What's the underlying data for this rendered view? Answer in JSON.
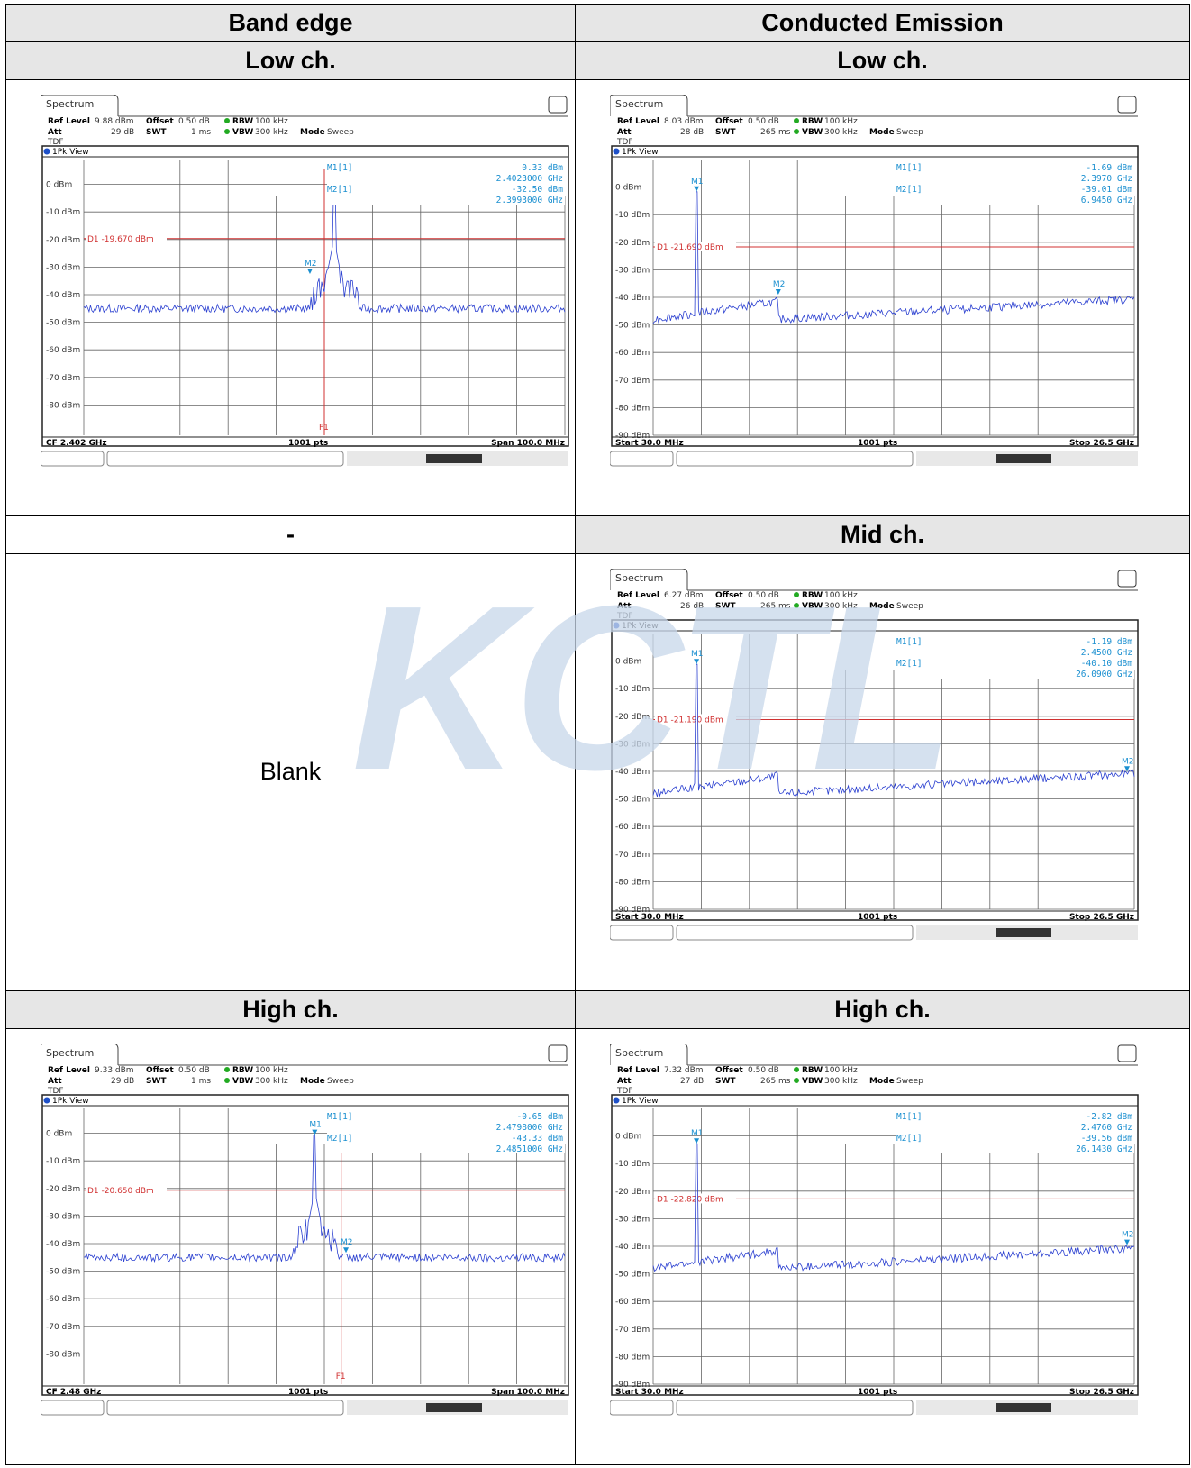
{
  "watermark": "KCTL",
  "table": {
    "col1_header": "Band edge",
    "col2_header": "Conducted Emission",
    "rows": [
      {
        "left_label": "Low ch.",
        "right_label": "Low ch."
      },
      {
        "left_label": "-",
        "right_label": "Mid ch."
      },
      {
        "left_label": "High ch.",
        "right_label": "High ch."
      }
    ],
    "blank_text": "Blank"
  },
  "chart_data": [
    {
      "id": "be-low",
      "type": "line",
      "tab": "Spectrum",
      "view": "1Pk View",
      "tdf": "TDF",
      "ref_level": "9.88 dBm",
      "att": "29 dB",
      "offset": "0.50 dB",
      "swt": "1 ms",
      "rbw": "100 kHz",
      "vbw": "300 kHz",
      "mode": "Sweep",
      "footer_left": "CF 2.402 GHz",
      "footer_mid": "1001 pts",
      "footer_right": "Span 100.0 MHz",
      "y_ticks": [
        "0 dBm",
        "-10 dBm",
        "-20 dBm",
        "-30 dBm",
        "-40 dBm",
        "-50 dBm",
        "-60 dBm",
        "-70 dBm",
        "-80 dBm"
      ],
      "ylim": [
        -90,
        10
      ],
      "ref_line_y": -3,
      "display_line": {
        "label": "D1",
        "value": "-19.670 dBm",
        "level": -19.67
      },
      "freq_line": {
        "label": "F1",
        "pos": 0.5
      },
      "markers": [
        {
          "name": "M1",
          "pos": 0.52,
          "level": 0.33
        },
        {
          "name": "M2",
          "pos": 0.47,
          "level": -32.5
        }
      ],
      "readout": [
        {
          "name": "M1[1]",
          "level": "0.33 dBm",
          "freq": "2.4023000 GHz"
        },
        {
          "name": "M2[1]",
          "level": "-32.50 dBm",
          "freq": "2.3993000 GHz"
        }
      ],
      "trace": {
        "kind": "band",
        "noise": -45,
        "peak_pos": 0.52,
        "peak_level": 0.33
      }
    },
    {
      "id": "ce-low",
      "type": "line",
      "tab": "Spectrum",
      "view": "1Pk View",
      "tdf": "TDF",
      "ref_level": "8.03 dBm",
      "att": "28 dB",
      "offset": "0.50 dB",
      "swt": "265 ms",
      "rbw": "100 kHz",
      "vbw": "300 kHz",
      "mode": "Sweep",
      "footer_left": "Start 30.0 MHz",
      "footer_mid": "1001 pts",
      "footer_right": "Stop 26.5 GHz",
      "y_ticks": [
        "0 dBm",
        "-10 dBm",
        "-20 dBm",
        "-30 dBm",
        "-40 dBm",
        "-50 dBm",
        "-60 dBm",
        "-70 dBm",
        "-80 dBm",
        "-90 dBm"
      ],
      "ylim": [
        -90,
        10
      ],
      "ref_line_y": 0,
      "display_line": {
        "label": "D1",
        "value": "-21.690 dBm",
        "level": -21.69
      },
      "freq_line": null,
      "markers": [
        {
          "name": "M1",
          "pos": 0.09,
          "level": -1.69
        },
        {
          "name": "M2",
          "pos": 0.26,
          "level": -39.01
        }
      ],
      "readout": [
        {
          "name": "M1[1]",
          "level": "-1.69 dBm",
          "freq": "2.3970 GHz"
        },
        {
          "name": "M2[1]",
          "level": "-39.01 dBm",
          "freq": "6.9450 GHz"
        }
      ],
      "trace": {
        "kind": "wide",
        "m1_pos": 0.09,
        "m1_level": -1.69
      }
    },
    {
      "id": "ce-mid",
      "type": "line",
      "tab": "Spectrum",
      "view": "1Pk View",
      "tdf": "TDF",
      "ref_level": "6.27 dBm",
      "att": "26 dB",
      "offset": "0.50 dB",
      "swt": "265 ms",
      "rbw": "100 kHz",
      "vbw": "300 kHz",
      "mode": "Sweep",
      "footer_left": "Start 30.0 MHz",
      "footer_mid": "1001 pts",
      "footer_right": "Stop 26.5 GHz",
      "y_ticks": [
        "0 dBm",
        "-10 dBm",
        "-20 dBm",
        "-30 dBm",
        "-40 dBm",
        "-50 dBm",
        "-60 dBm",
        "-70 dBm",
        "-80 dBm",
        "-90 dBm"
      ],
      "ylim": [
        -90,
        10
      ],
      "ref_line_y": 0,
      "display_line": {
        "label": "D1",
        "value": "-21.190 dBm",
        "level": -21.19
      },
      "freq_line": null,
      "markers": [
        {
          "name": "M1",
          "pos": 0.09,
          "level": -1.19
        },
        {
          "name": "M2",
          "pos": 0.985,
          "level": -40.1
        }
      ],
      "readout": [
        {
          "name": "M1[1]",
          "level": "-1.19 dBm",
          "freq": "2.4500 GHz"
        },
        {
          "name": "M2[1]",
          "level": "-40.10 dBm",
          "freq": "26.0900 GHz"
        }
      ],
      "trace": {
        "kind": "wide",
        "m1_pos": 0.09,
        "m1_level": -1.19
      }
    },
    {
      "id": "be-high",
      "type": "line",
      "tab": "Spectrum",
      "view": "1Pk View",
      "tdf": "TDF",
      "ref_level": "9.33 dBm",
      "att": "29 dB",
      "offset": "0.50 dB",
      "swt": "1 ms",
      "rbw": "100 kHz",
      "vbw": "300 kHz",
      "mode": "Sweep",
      "footer_left": "CF 2.48 GHz",
      "footer_mid": "1001 pts",
      "footer_right": "Span 100.0 MHz",
      "y_ticks": [
        "0 dBm",
        "-10 dBm",
        "-20 dBm",
        "-30 dBm",
        "-40 dBm",
        "-50 dBm",
        "-60 dBm",
        "-70 dBm",
        "-80 dBm"
      ],
      "ylim": [
        -90,
        10
      ],
      "ref_line_y": -3,
      "display_line": {
        "label": "D1",
        "value": "-20.650 dBm",
        "level": -20.65
      },
      "freq_line": {
        "label": "F1",
        "pos": 0.535
      },
      "markers": [
        {
          "name": "M1",
          "pos": 0.48,
          "level": -0.65
        },
        {
          "name": "M2",
          "pos": 0.545,
          "level": -43.33
        }
      ],
      "readout": [
        {
          "name": "M1[1]",
          "level": "-0.65 dBm",
          "freq": "2.4798000 GHz"
        },
        {
          "name": "M2[1]",
          "level": "-43.33 dBm",
          "freq": "2.4851000 GHz"
        }
      ],
      "trace": {
        "kind": "band",
        "noise": -45,
        "peak_pos": 0.48,
        "peak_level": -0.65
      }
    },
    {
      "id": "ce-high",
      "type": "line",
      "tab": "Spectrum",
      "view": "1Pk View",
      "tdf": "TDF",
      "ref_level": "7.32 dBm",
      "att": "27 dB",
      "offset": "0.50 dB",
      "swt": "265 ms",
      "rbw": "100 kHz",
      "vbw": "300 kHz",
      "mode": "Sweep",
      "footer_left": "Start 30.0 MHz",
      "footer_mid": "1001 pts",
      "footer_right": "Stop 26.5 GHz",
      "y_ticks": [
        "0 dBm",
        "-10 dBm",
        "-20 dBm",
        "-30 dBm",
        "-40 dBm",
        "-50 dBm",
        "-60 dBm",
        "-70 dBm",
        "-80 dBm",
        "-90 dBm"
      ],
      "ylim": [
        -90,
        10
      ],
      "ref_line_y": 0,
      "display_line": {
        "label": "D1",
        "value": "-22.820 dBm",
        "level": -22.82
      },
      "freq_line": null,
      "markers": [
        {
          "name": "M1",
          "pos": 0.09,
          "level": -2.82
        },
        {
          "name": "M2",
          "pos": 0.985,
          "level": -39.56
        }
      ],
      "readout": [
        {
          "name": "M1[1]",
          "level": "-2.82 dBm",
          "freq": "2.4760 GHz"
        },
        {
          "name": "M2[1]",
          "level": "-39.56 dBm",
          "freq": "26.1430 GHz"
        }
      ],
      "trace": {
        "kind": "wide",
        "m1_pos": 0.09,
        "m1_level": -2.82
      }
    }
  ]
}
